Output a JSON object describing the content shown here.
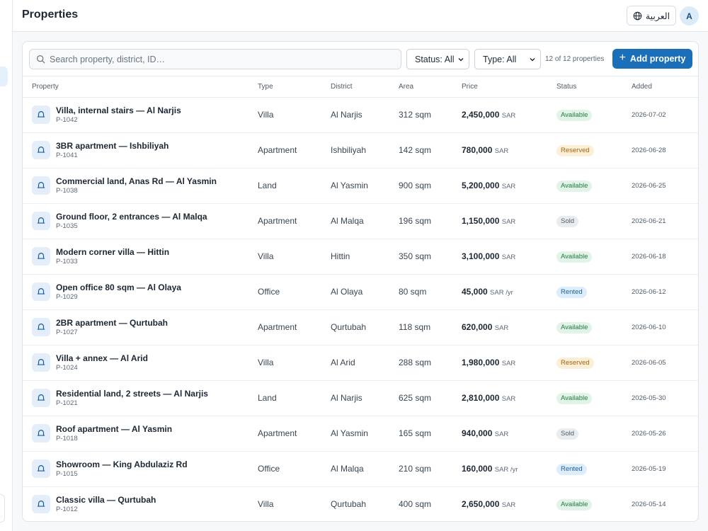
{
  "header": {
    "title": "Properties",
    "language_label": "العربية",
    "avatar_initial": "A"
  },
  "toolbar": {
    "search_placeholder": "Search property, district, ID…",
    "status_filter": "Status: All",
    "type_filter": "Type: All",
    "count_text": "12 of 12 properties",
    "add_label": "Add property"
  },
  "table": {
    "columns": [
      "Property",
      "Type",
      "District",
      "Area",
      "Price",
      "Status",
      "Added"
    ],
    "rows": [
      {
        "name": "Villa, internal stairs — Al Narjis",
        "id": "P-1042",
        "type": "Villa",
        "district": "Al Narjis",
        "area": "312 sqm",
        "price": "2,450,000",
        "unit": "SAR",
        "status": "Available",
        "added": "2026-07-02"
      },
      {
        "name": "3BR apartment — Ishbiliyah",
        "id": "P-1041",
        "type": "Apartment",
        "district": "Ishbiliyah",
        "area": "142 sqm",
        "price": "780,000",
        "unit": "SAR",
        "status": "Reserved",
        "added": "2026-06-28"
      },
      {
        "name": "Commercial land, Anas Rd — Al Yasmin",
        "id": "P-1038",
        "type": "Land",
        "district": "Al Yasmin",
        "area": "900 sqm",
        "price": "5,200,000",
        "unit": "SAR",
        "status": "Available",
        "added": "2026-06-25"
      },
      {
        "name": "Ground floor, 2 entrances — Al Malqa",
        "id": "P-1035",
        "type": "Apartment",
        "district": "Al Malqa",
        "area": "196 sqm",
        "price": "1,150,000",
        "unit": "SAR",
        "status": "Sold",
        "added": "2026-06-21"
      },
      {
        "name": "Modern corner villa — Hittin",
        "id": "P-1033",
        "type": "Villa",
        "district": "Hittin",
        "area": "350 sqm",
        "price": "3,100,000",
        "unit": "SAR",
        "status": "Available",
        "added": "2026-06-18"
      },
      {
        "name": "Open office 80 sqm — Al Olaya",
        "id": "P-1029",
        "type": "Office",
        "district": "Al Olaya",
        "area": "80 sqm",
        "price": "45,000",
        "unit": "SAR /yr",
        "status": "Rented",
        "added": "2026-06-12"
      },
      {
        "name": "2BR apartment — Qurtubah",
        "id": "P-1027",
        "type": "Apartment",
        "district": "Qurtubah",
        "area": "118 sqm",
        "price": "620,000",
        "unit": "SAR",
        "status": "Available",
        "added": "2026-06-10"
      },
      {
        "name": "Villa + annex — Al Arid",
        "id": "P-1024",
        "type": "Villa",
        "district": "Al Arid",
        "area": "288 sqm",
        "price": "1,980,000",
        "unit": "SAR",
        "status": "Reserved",
        "added": "2026-06-05"
      },
      {
        "name": "Residential land, 2 streets — Al Narjis",
        "id": "P-1021",
        "type": "Land",
        "district": "Al Narjis",
        "area": "625 sqm",
        "price": "2,810,000",
        "unit": "SAR",
        "status": "Available",
        "added": "2026-05-30"
      },
      {
        "name": "Roof apartment — Al Yasmin",
        "id": "P-1018",
        "type": "Apartment",
        "district": "Al Yasmin",
        "area": "165 sqm",
        "price": "940,000",
        "unit": "SAR",
        "status": "Sold",
        "added": "2026-05-26"
      },
      {
        "name": "Showroom — King Abdulaziz Rd",
        "id": "P-1015",
        "type": "Office",
        "district": "Al Malqa",
        "area": "210 sqm",
        "price": "160,000",
        "unit": "SAR /yr",
        "status": "Rented",
        "added": "2026-05-19"
      },
      {
        "name": "Classic villa — Qurtubah",
        "id": "P-1012",
        "type": "Villa",
        "district": "Qurtubah",
        "area": "400 sqm",
        "price": "2,650,000",
        "unit": "SAR",
        "status": "Available",
        "added": "2026-05-14"
      }
    ]
  },
  "icons": {
    "row_icon": "bell-icon",
    "search": "search-icon",
    "language": "globe-icon"
  },
  "colors": {
    "accent": "#1b6fb8",
    "available": "#237a42",
    "reserved": "#a4650f",
    "sold": "#4f5b67",
    "rented": "#1d5f98"
  }
}
